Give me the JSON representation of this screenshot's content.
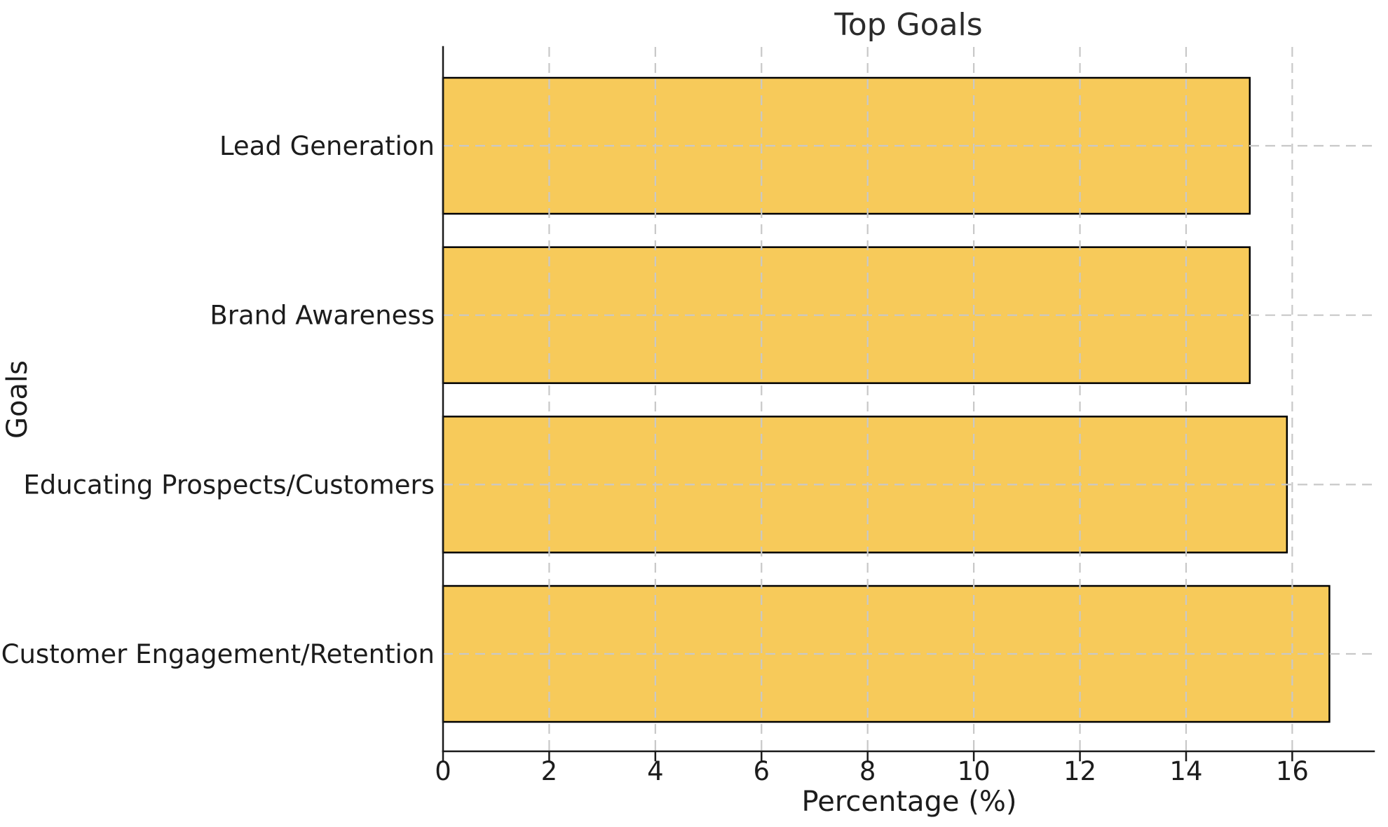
{
  "chart_data": {
    "type": "bar",
    "orientation": "horizontal",
    "title": "Top Goals",
    "xlabel": "Percentage (%)",
    "ylabel": "Goals",
    "categories": [
      "Lead Generation",
      "Brand Awareness",
      "Educating Prospects/Customers",
      "Customer Engagement/Retention"
    ],
    "values": [
      15.2,
      15.2,
      15.9,
      16.7
    ],
    "xticks": [
      0,
      2,
      4,
      6,
      8,
      10,
      12,
      14,
      16
    ],
    "xlim": [
      0,
      17.54
    ],
    "grid": true,
    "grid_style": "dashed",
    "grid_color": "#c8c8c8",
    "bar_color": "#F7CA5A",
    "bar_edge_color": "#000000",
    "axis_color": "#1a1a1a",
    "legend": "none"
  }
}
